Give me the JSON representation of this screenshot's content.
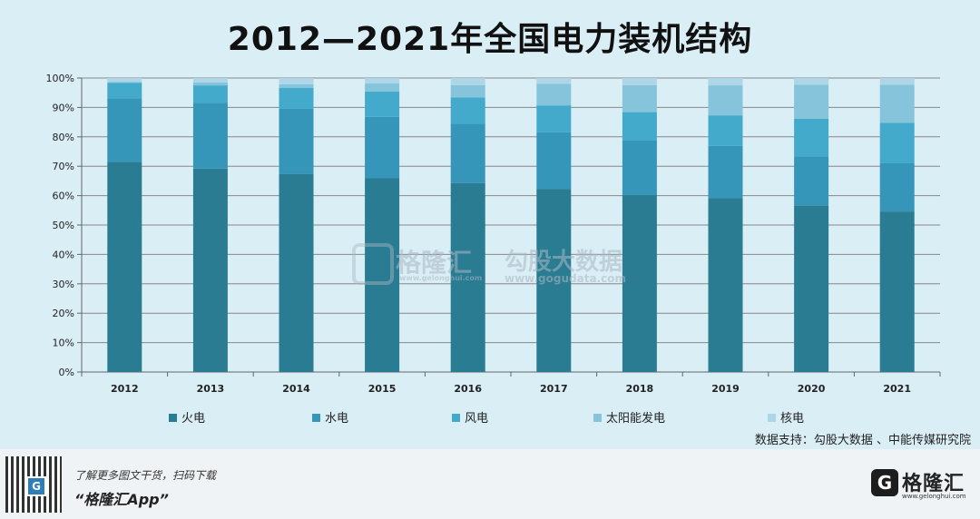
{
  "title": "2012—2021年全国电力装机结构",
  "source": "数据支持：勾股大数据 、中能传媒研究院",
  "footer": {
    "tip_line1": "了解更多图文干货，扫码下载",
    "tip_line2": "“格隆汇App”",
    "qr_mark": "G",
    "brand_logo": "G",
    "brand_name": "格隆汇",
    "brand_url": "www.gelonghui.com"
  },
  "watermarks": {
    "glh_name": "格隆汇",
    "glh_url": "www.gelonghui.com",
    "ggd_name": "勾股大数据",
    "ggd_url": "www.gogudata.com"
  },
  "colors": {
    "thermal": "#2a7c93",
    "hydro": "#3596b9",
    "wind": "#43aacb",
    "solar": "#86c4dc",
    "nuclear": "#aed6e7"
  },
  "chart_data": {
    "type": "bar",
    "stacked": true,
    "categories": [
      "2012",
      "2013",
      "2014",
      "2015",
      "2016",
      "2017",
      "2018",
      "2019",
      "2020",
      "2021"
    ],
    "series": [
      {
        "name": "火电",
        "values": [
          71.5,
          69.2,
          67.4,
          65.9,
          64.3,
          62.2,
          60.2,
          59.2,
          56.6,
          54.6
        ]
      },
      {
        "name": "水电",
        "values": [
          21.6,
          22.3,
          22.2,
          20.9,
          20.1,
          19.3,
          18.5,
          17.7,
          16.8,
          16.4
        ]
      },
      {
        "name": "风电",
        "values": [
          5.3,
          6.0,
          7.0,
          8.6,
          9.0,
          9.2,
          9.7,
          10.4,
          12.8,
          13.8
        ]
      },
      {
        "name": "太阳能发电",
        "values": [
          0.3,
          1.0,
          1.3,
          2.8,
          4.2,
          7.3,
          9.2,
          10.2,
          11.5,
          12.9
        ]
      },
      {
        "name": "核电",
        "values": [
          1.3,
          1.5,
          2.1,
          1.8,
          2.4,
          2.0,
          2.4,
          2.5,
          2.3,
          2.3
        ]
      }
    ],
    "yticks": [
      "0%",
      "10%",
      "20%",
      "30%",
      "40%",
      "50%",
      "60%",
      "70%",
      "80%",
      "90%",
      "100%"
    ],
    "ylim": [
      0,
      100
    ],
    "legend_position": "bottom",
    "grid": true
  }
}
